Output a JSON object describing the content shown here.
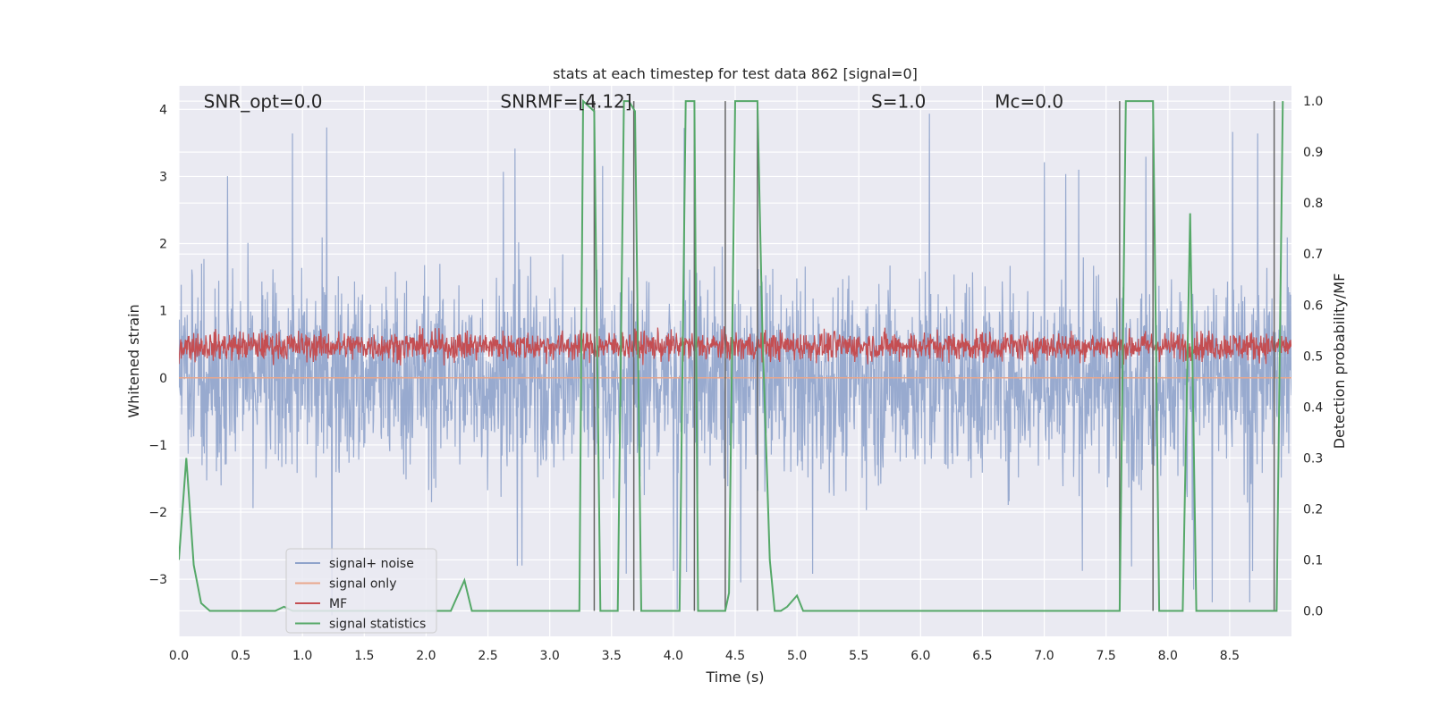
{
  "chart_data": {
    "type": "line",
    "title": "stats at each timestep for test data 862 [signal=0]",
    "xlabel": "Time (s)",
    "ylabel_left": "Whitened strain",
    "ylabel_right": "Detection probability/MF",
    "xlim": [
      0.0,
      9.0
    ],
    "ylim_left": [
      -3.85,
      4.35
    ],
    "ylim_right": [
      -0.05,
      1.03
    ],
    "x_ticks": [
      0.0,
      0.5,
      1.0,
      1.5,
      2.0,
      2.5,
      3.0,
      3.5,
      4.0,
      4.5,
      5.0,
      5.5,
      6.0,
      6.5,
      7.0,
      7.5,
      8.0,
      8.5
    ],
    "x_tick_labels": [
      "0.0",
      "0.5",
      "1.0",
      "1.5",
      "2.0",
      "2.5",
      "3.0",
      "3.5",
      "4.0",
      "4.5",
      "5.0",
      "5.5",
      "6.0",
      "6.5",
      "7.0",
      "7.5",
      "8.0",
      "8.5"
    ],
    "y_left_ticks": [
      4,
      3,
      2,
      1,
      0,
      -1,
      -2,
      -3
    ],
    "y_left_tick_labels": [
      "4",
      "3",
      "2",
      "1",
      "0",
      "−1",
      "−2",
      "−3"
    ],
    "y_right_ticks": [
      1.0,
      0.9,
      0.8,
      0.7,
      0.6,
      0.5,
      0.4,
      0.3,
      0.2,
      0.1,
      0.0
    ],
    "y_right_tick_labels": [
      "1.0",
      "0.9",
      "0.8",
      "0.7",
      "0.6",
      "0.5",
      "0.4",
      "0.3",
      "0.2",
      "0.1",
      "0.0"
    ],
    "grid": true,
    "annotations": [
      {
        "x": 0.2,
        "y": 4.0,
        "label": "SNR_opt=0.0"
      },
      {
        "x": 2.6,
        "y": 4.0,
        "label": "SNRMF=[4.12]"
      },
      {
        "x": 5.6,
        "y": 4.0,
        "label": "S=1.0"
      },
      {
        "x": 6.6,
        "y": 4.0,
        "label": "Mc=0.0"
      }
    ],
    "legend": {
      "position": "lower-left",
      "entries": [
        {
          "name": "signal+ noise",
          "color": "#8fa3cb"
        },
        {
          "name": "signal only",
          "color": "#e9a78c"
        },
        {
          "name": "MF",
          "color": "#c44e52"
        },
        {
          "name": "signal statistics",
          "color": "#55a868"
        }
      ]
    },
    "series": [
      {
        "name": "signal+ noise",
        "axis": "left",
        "style": "noise band",
        "approx_range": [
          -3.6,
          4.0
        ],
        "color": "#8fa3cb"
      },
      {
        "name": "signal only",
        "axis": "left",
        "values_constant": 0.0,
        "color": "#e9a78c"
      },
      {
        "name": "MF",
        "axis": "left",
        "style": "noise band",
        "approx_range": [
          0.0,
          0.95
        ],
        "color": "#c44e52"
      },
      {
        "name": "signal statistics",
        "axis": "right",
        "color": "#55a868",
        "x": [
          0.0,
          0.06,
          0.12,
          0.18,
          0.25,
          0.78,
          0.85,
          0.92,
          2.2,
          2.31,
          2.37,
          3.24,
          3.27,
          3.36,
          3.41,
          3.55,
          3.6,
          3.64,
          3.69,
          3.74,
          4.05,
          4.1,
          4.17,
          4.2,
          4.42,
          4.45,
          4.5,
          4.6,
          4.68,
          4.72,
          4.78,
          4.82,
          4.87,
          4.92,
          5.0,
          5.05,
          7.61,
          7.66,
          7.7,
          7.88,
          7.93,
          8.12,
          8.18,
          8.23,
          8.88,
          8.93
        ],
        "y": [
          0.1,
          0.3,
          0.09,
          0.015,
          0.0,
          0.0,
          0.008,
          0.0,
          0.0,
          0.06,
          0.0,
          0.0,
          1.0,
          0.98,
          0.0,
          0.0,
          1.0,
          1.0,
          0.98,
          0.0,
          0.0,
          1.0,
          1.0,
          0.0,
          0.0,
          0.035,
          1.0,
          1.0,
          1.0,
          0.55,
          0.1,
          0.0,
          0.0,
          0.008,
          0.03,
          0.0,
          0.0,
          1.0,
          1.0,
          1.0,
          0.0,
          0.0,
          0.78,
          0.0,
          0.0,
          1.0
        ]
      }
    ],
    "vertical_markers": [
      3.36,
      3.68,
      4.17,
      4.42,
      4.68,
      7.61,
      7.88,
      8.86
    ],
    "marker_color": "#666666"
  }
}
